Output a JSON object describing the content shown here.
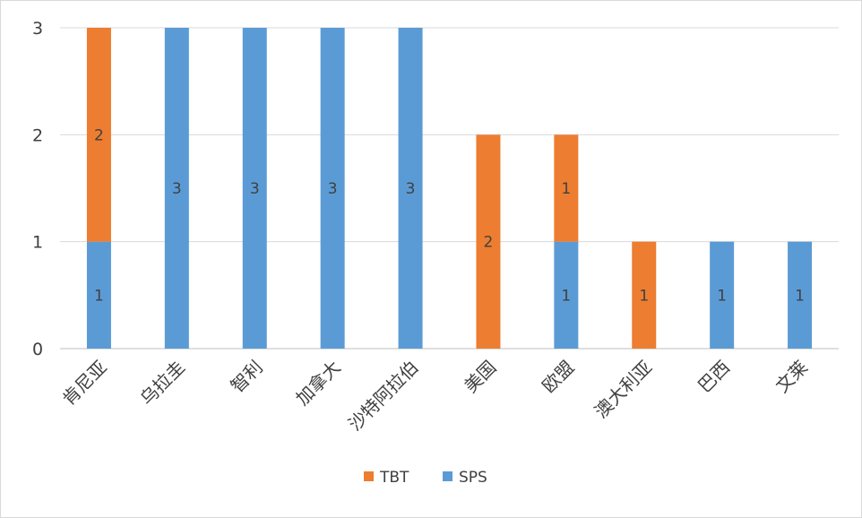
{
  "chart_data": {
    "type": "bar",
    "stacked": true,
    "categories": [
      "肯尼亚",
      "乌拉圭",
      "智利",
      "加拿大",
      "沙特阿拉伯",
      "美国",
      "欧盟",
      "澳大利亚",
      "巴西",
      "文莱"
    ],
    "series": [
      {
        "name": "SPS",
        "color": "#5b9bd5",
        "values": [
          1,
          3,
          3,
          3,
          3,
          0,
          1,
          0,
          1,
          1
        ]
      },
      {
        "name": "TBT",
        "color": "#ed7d31",
        "values": [
          2,
          0,
          0,
          0,
          0,
          2,
          1,
          1,
          0,
          0
        ]
      }
    ],
    "legend": [
      {
        "name": "TBT",
        "color": "#ed7d31"
      },
      {
        "name": "SPS",
        "color": "#5b9bd5"
      }
    ],
    "yticks": [
      "0",
      "1",
      "2",
      "3"
    ],
    "ylim": [
      0,
      3
    ],
    "title": "",
    "xlabel": "",
    "ylabel": "",
    "grid": true,
    "legend_position": "bottom"
  }
}
